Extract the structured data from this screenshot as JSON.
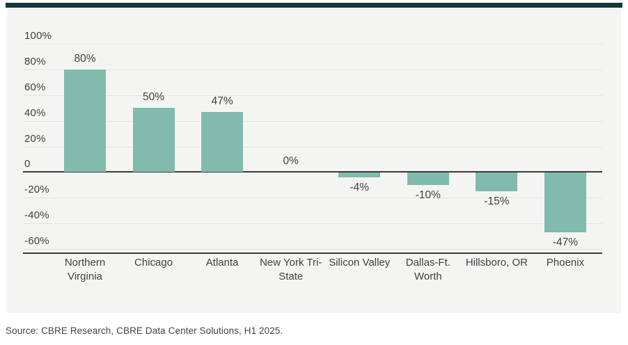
{
  "page": {
    "source_note": "Source: CBRE Research, CBRE Data Center Solutions, H1 2025."
  },
  "colors": {
    "top_band": "#16363e",
    "card_bg": "#f4f5f3",
    "gridline": "#e3e5e2",
    "axis_line": "#3a3a3a",
    "bar": "#80bbad",
    "text": "#3f3f3f",
    "source_text": "#424242"
  },
  "chart_data": {
    "type": "bar",
    "title": "",
    "xlabel": "",
    "ylabel": "",
    "categories": [
      "Northern Virginia",
      "Chicago",
      "Atlanta",
      "New York Tri-State",
      "Silicon Valley",
      "Dallas-Ft. Worth",
      "Hillsboro, OR",
      "Phoenix"
    ],
    "values": [
      80,
      50,
      47,
      0,
      -4,
      -10,
      -15,
      -47
    ],
    "value_labels": [
      "80%",
      "50%",
      "47%",
      "0%",
      "-4%",
      "-10%",
      "-15%",
      "-47%"
    ],
    "yticks": [
      100,
      80,
      60,
      40,
      20,
      0,
      -20,
      -40,
      -60
    ],
    "ytick_labels": [
      "100%",
      "80%",
      "60%",
      "40%",
      "20%",
      "0",
      "-20%",
      "-40%",
      "-60%"
    ],
    "ylim": [
      -60,
      100
    ],
    "grid": true,
    "legend_position": "none"
  }
}
